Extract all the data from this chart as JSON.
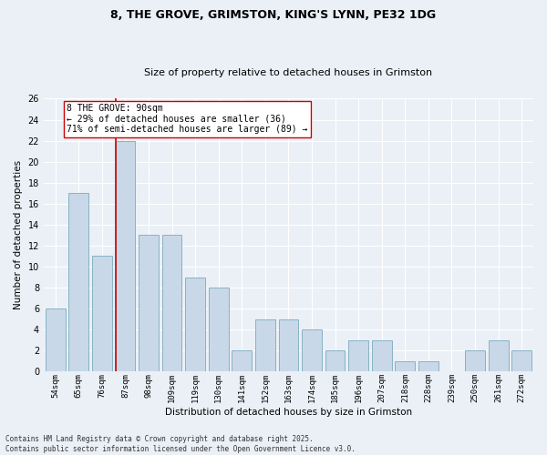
{
  "title_line1": "8, THE GROVE, GRIMSTON, KING'S LYNN, PE32 1DG",
  "title_line2": "Size of property relative to detached houses in Grimston",
  "xlabel": "Distribution of detached houses by size in Grimston",
  "ylabel": "Number of detached properties",
  "categories": [
    "54sqm",
    "65sqm",
    "76sqm",
    "87sqm",
    "98sqm",
    "109sqm",
    "119sqm",
    "130sqm",
    "141sqm",
    "152sqm",
    "163sqm",
    "174sqm",
    "185sqm",
    "196sqm",
    "207sqm",
    "218sqm",
    "228sqm",
    "239sqm",
    "250sqm",
    "261sqm",
    "272sqm"
  ],
  "values": [
    6,
    17,
    11,
    22,
    13,
    13,
    9,
    8,
    2,
    5,
    5,
    4,
    2,
    3,
    3,
    1,
    1,
    0,
    2,
    3,
    2
  ],
  "bar_color": "#c8d8e8",
  "bar_edge_color": "#7aaabf",
  "highlight_index": 3,
  "highlight_line_color": "#cc0000",
  "ylim": [
    0,
    26
  ],
  "yticks": [
    0,
    2,
    4,
    6,
    8,
    10,
    12,
    14,
    16,
    18,
    20,
    22,
    24,
    26
  ],
  "annotation_text": "8 THE GROVE: 90sqm\n← 29% of detached houses are smaller (36)\n71% of semi-detached houses are larger (89) →",
  "annotation_box_color": "#ffffff",
  "annotation_box_edge": "#cc0000",
  "footnote": "Contains HM Land Registry data © Crown copyright and database right 2025.\nContains public sector information licensed under the Open Government Licence v3.0.",
  "bg_color": "#eaf0f6",
  "grid_color": "#ffffff",
  "title1_fontsize": 9,
  "title2_fontsize": 8,
  "xlabel_fontsize": 7.5,
  "ylabel_fontsize": 7.5,
  "xtick_fontsize": 6.5,
  "ytick_fontsize": 7,
  "annot_fontsize": 7,
  "footnote_fontsize": 5.5
}
